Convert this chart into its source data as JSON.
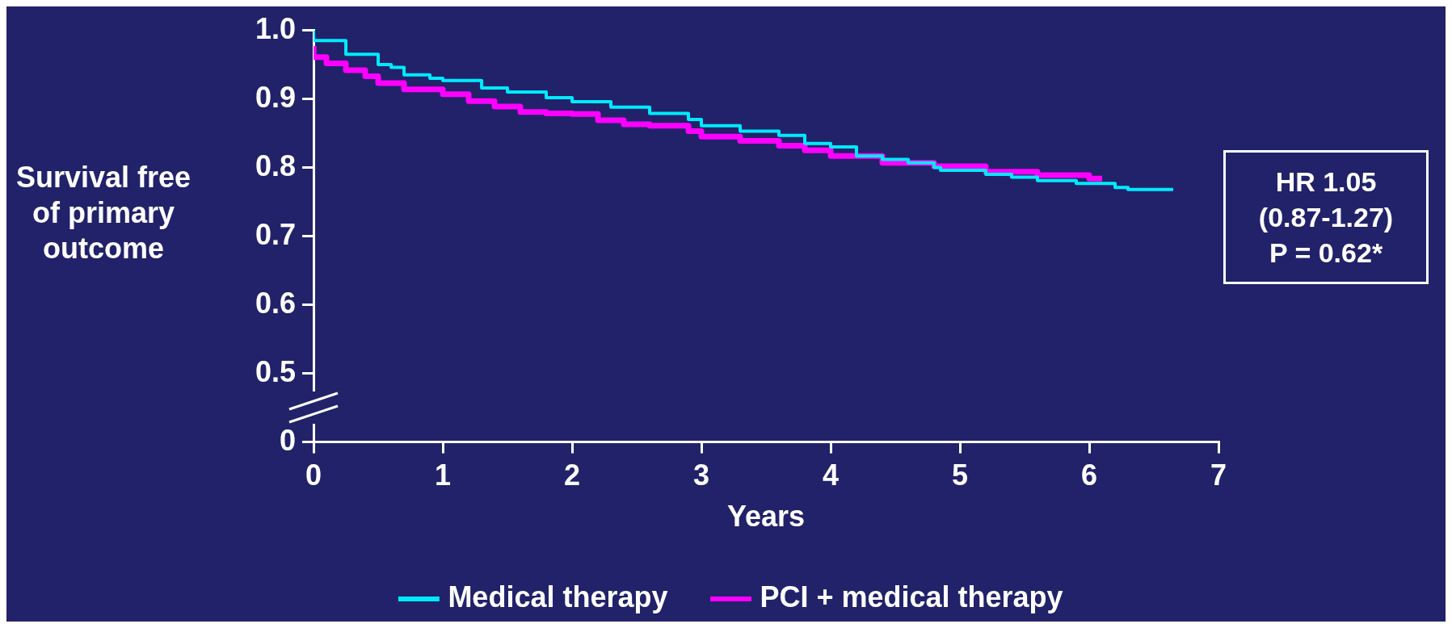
{
  "chart_data": {
    "type": "step",
    "xlabel": "Years",
    "ylabel": "Survival free of primary outcome",
    "xlim": [
      0,
      7
    ],
    "xticks": [
      0,
      1,
      2,
      3,
      4,
      5,
      6,
      7
    ],
    "ylim": [
      0.4,
      1.0
    ],
    "yticks": [
      {
        "value": 0.4,
        "label": "0"
      },
      0.5,
      0.6,
      0.7,
      0.8,
      0.9,
      {
        "value": 1.0,
        "label": "1.0"
      }
    ],
    "grid": false,
    "legend": "bottom",
    "marker": "none",
    "line_style": "solid",
    "annotations": [
      "HR 1.05\n(0.87-1.27)\nP = 0.62*"
    ],
    "series": [
      {
        "name": "Medical therapy",
        "color": "#00eaff",
        "x": [
          0,
          0.25,
          0.5,
          0.6,
          0.7,
          0.9,
          1.0,
          1.3,
          1.5,
          1.8,
          2.0,
          2.3,
          2.6,
          2.9,
          3.0,
          3.3,
          3.6,
          3.8,
          4.0,
          4.2,
          4.4,
          4.6,
          4.8,
          4.85,
          5.2,
          5.4,
          5.6,
          5.9,
          6.2,
          6.3,
          6.65
        ],
        "values": [
          1.0,
          0.985,
          0.965,
          0.95,
          0.946,
          0.935,
          0.93,
          0.927,
          0.916,
          0.91,
          0.902,
          0.896,
          0.888,
          0.879,
          0.87,
          0.861,
          0.853,
          0.847,
          0.835,
          0.83,
          0.817,
          0.812,
          0.807,
          0.8,
          0.796,
          0.79,
          0.786,
          0.781,
          0.777,
          0.771,
          0.768
        ]
      },
      {
        "name": "PCI + medical therapy",
        "color": "#ff00ff",
        "x": [
          0,
          0.1,
          0.25,
          0.4,
          0.5,
          0.7,
          1.0,
          1.2,
          1.4,
          1.6,
          1.8,
          2.0,
          2.2,
          2.4,
          2.6,
          2.9,
          3.0,
          3.3,
          3.6,
          3.8,
          4.0,
          4.4,
          4.8,
          5.2,
          5.6,
          6.0,
          6.1
        ],
        "values": [
          0.977,
          0.961,
          0.952,
          0.942,
          0.933,
          0.923,
          0.914,
          0.907,
          0.897,
          0.889,
          0.881,
          0.879,
          0.878,
          0.869,
          0.863,
          0.861,
          0.853,
          0.845,
          0.839,
          0.832,
          0.825,
          0.817,
          0.807,
          0.802,
          0.794,
          0.789,
          0.784
        ]
      }
    ]
  }
}
